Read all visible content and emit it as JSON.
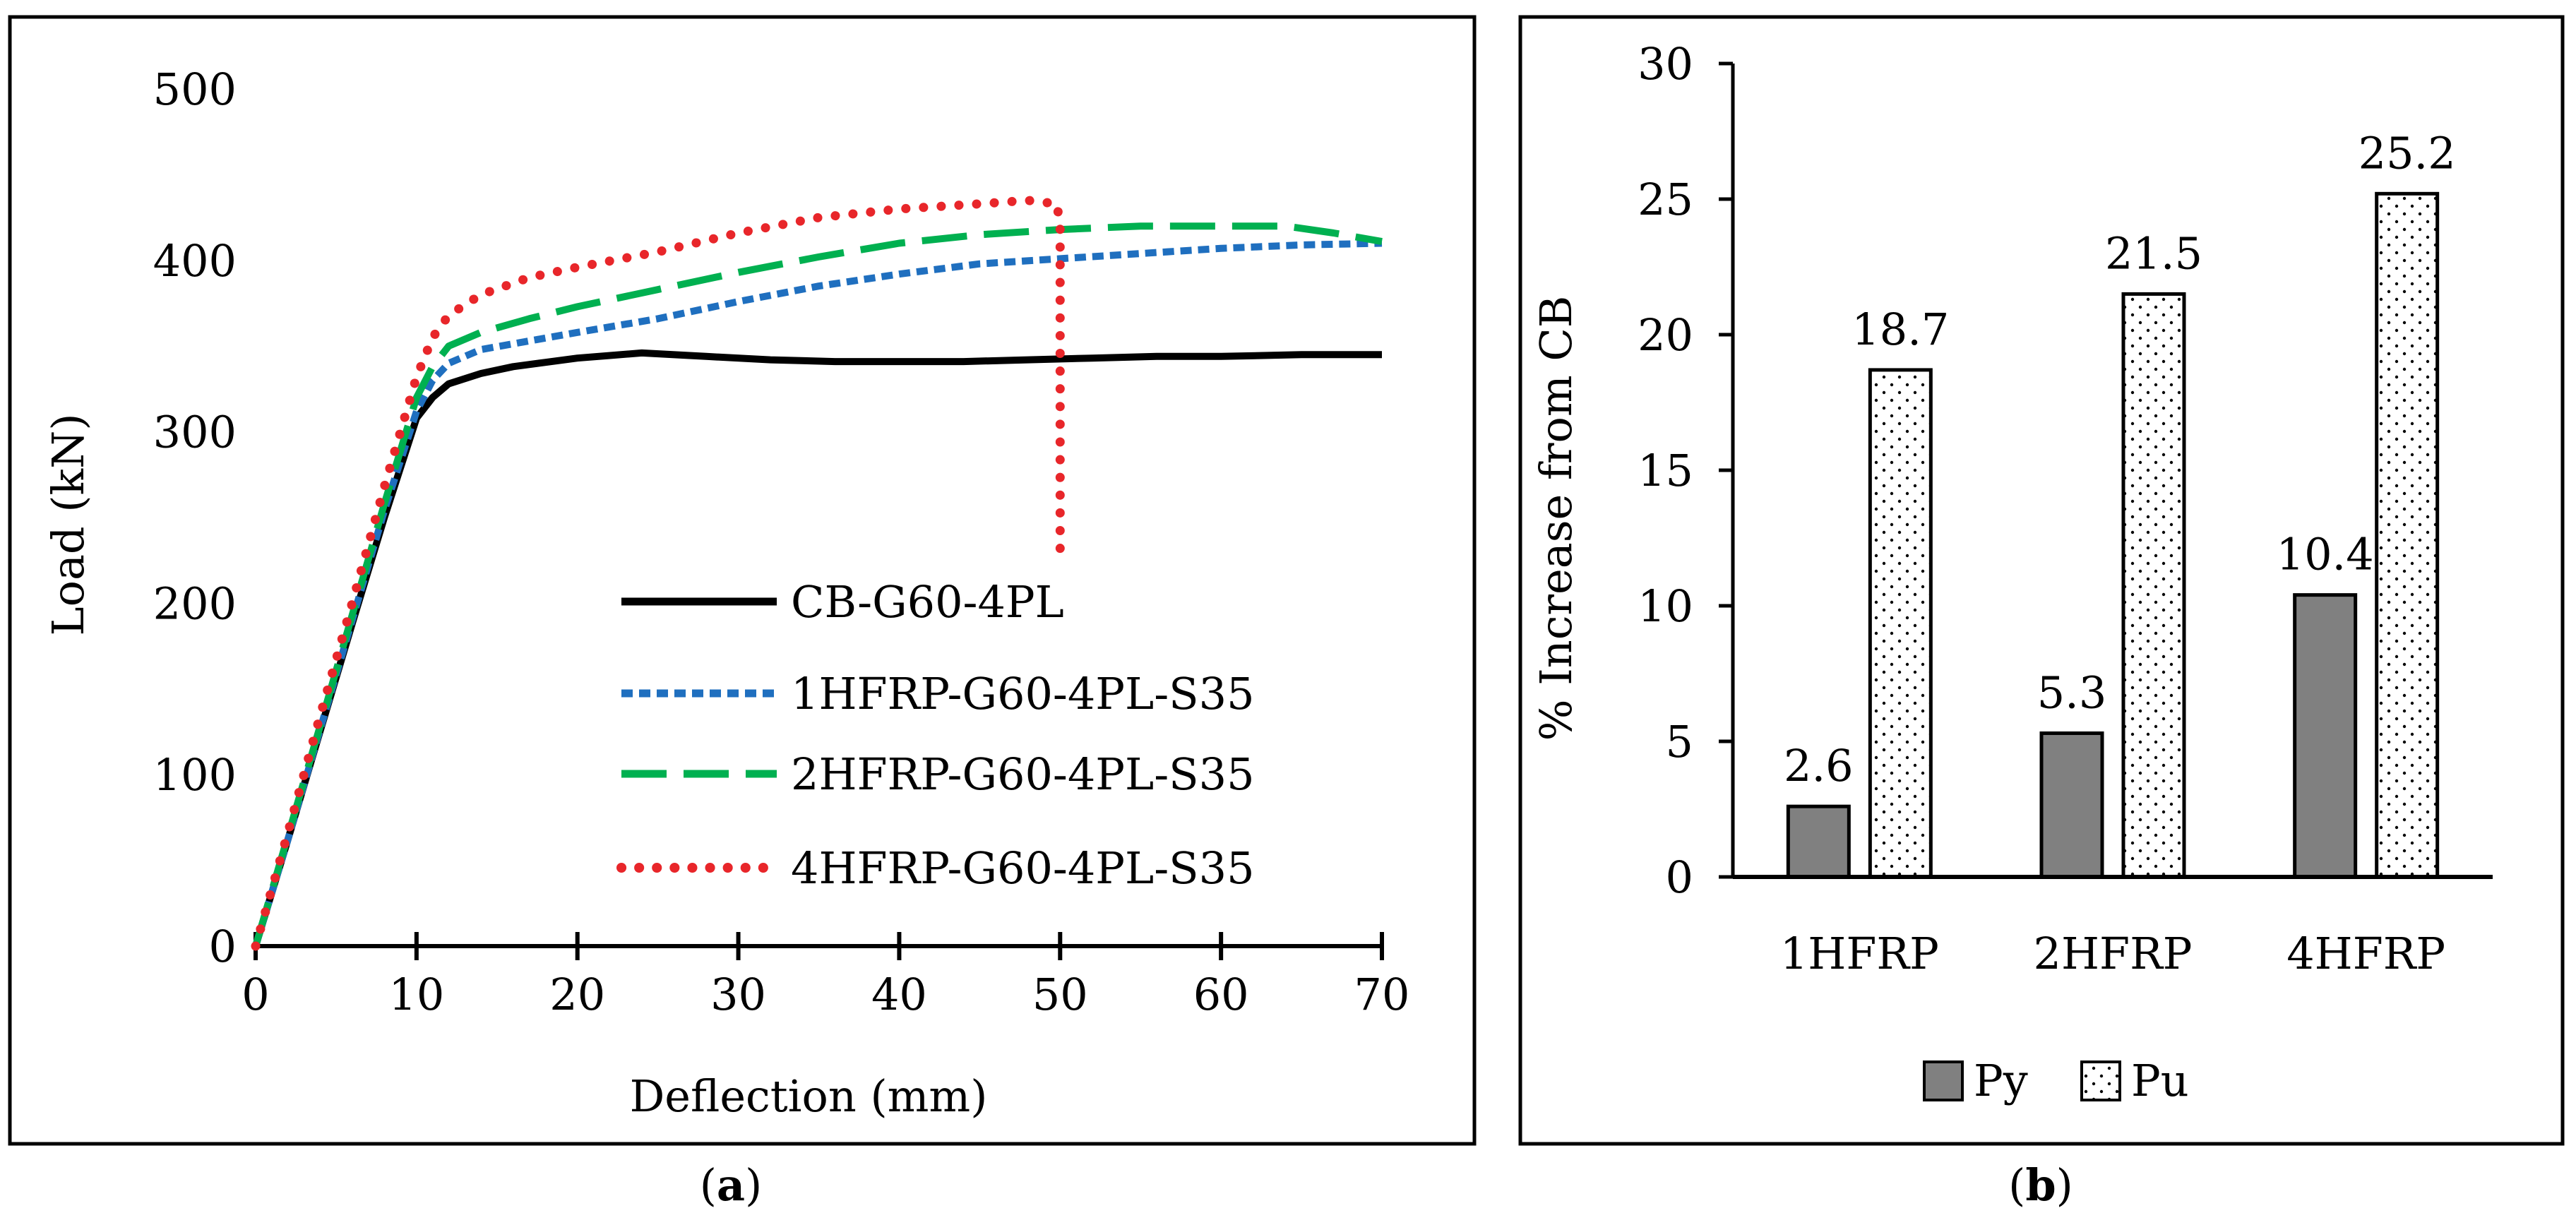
{
  "chart_data": [
    {
      "type": "line",
      "panel_label": "a",
      "xlabel": "Deflection (mm)",
      "ylabel": "Load (kN)",
      "xlim": [
        0,
        70
      ],
      "ylim": [
        0,
        500
      ],
      "xticks": [
        "0",
        "10",
        "20",
        "30",
        "40",
        "50",
        "60",
        "70"
      ],
      "yticks": [
        "0",
        "100",
        "200",
        "300",
        "400",
        "500"
      ],
      "grid": false,
      "legend_position": "center-right",
      "series": [
        {
          "name": "CB-G60-4PL",
          "color": "#000000",
          "style": "solid",
          "points": [
            [
              0,
              0
            ],
            [
              2,
              62
            ],
            [
              4,
              125
            ],
            [
              6,
              188
            ],
            [
              8,
              250
            ],
            [
              10,
              308
            ],
            [
              11,
              320
            ],
            [
              12,
              328
            ],
            [
              14,
              334
            ],
            [
              16,
              338
            ],
            [
              20,
              343
            ],
            [
              24,
              346
            ],
            [
              28,
              344
            ],
            [
              32,
              342
            ],
            [
              36,
              341
            ],
            [
              40,
              341
            ],
            [
              44,
              341
            ],
            [
              48,
              342
            ],
            [
              52,
              343
            ],
            [
              56,
              344
            ],
            [
              60,
              344
            ],
            [
              65,
              345
            ],
            [
              70,
              345
            ]
          ]
        },
        {
          "name": "1HFRP-G60-4PL-S35",
          "color": "#1f6fbf",
          "style": "short-dash",
          "points": [
            [
              0,
              0
            ],
            [
              2,
              62
            ],
            [
              4,
              126
            ],
            [
              6,
              190
            ],
            [
              8,
              254
            ],
            [
              10,
              312
            ],
            [
              11,
              330
            ],
            [
              12,
              340
            ],
            [
              14,
              348
            ],
            [
              17,
              353
            ],
            [
              20,
              358
            ],
            [
              25,
              366
            ],
            [
              30,
              376
            ],
            [
              35,
              385
            ],
            [
              40,
              392
            ],
            [
              45,
              398
            ],
            [
              50,
              401
            ],
            [
              55,
              404
            ],
            [
              60,
              407
            ],
            [
              65,
              409
            ],
            [
              70,
              410
            ]
          ]
        },
        {
          "name": "2HFRP-G60-4PL-S35",
          "color": "#00b050",
          "style": "long-dash",
          "points": [
            [
              0,
              0
            ],
            [
              2,
              64
            ],
            [
              4,
              128
            ],
            [
              6,
              193
            ],
            [
              8,
              258
            ],
            [
              10,
              320
            ],
            [
              11,
              338
            ],
            [
              12,
              350
            ],
            [
              14,
              358
            ],
            [
              17,
              366
            ],
            [
              20,
              373
            ],
            [
              25,
              383
            ],
            [
              30,
              393
            ],
            [
              35,
              402
            ],
            [
              40,
              410
            ],
            [
              45,
              415
            ],
            [
              50,
              418
            ],
            [
              55,
              420
            ],
            [
              60,
              420
            ],
            [
              64,
              420
            ],
            [
              67,
              416
            ],
            [
              70,
              411
            ]
          ]
        },
        {
          "name": "4HFRP-G60-4PL-S35",
          "color": "#e8262a",
          "style": "dotted",
          "points": [
            [
              0,
              0
            ],
            [
              2,
              66
            ],
            [
              4,
              134
            ],
            [
              6,
              200
            ],
            [
              8,
              268
            ],
            [
              10,
              332
            ],
            [
              11,
              355
            ],
            [
              12,
              368
            ],
            [
              14,
              380
            ],
            [
              17,
              390
            ],
            [
              20,
              396
            ],
            [
              25,
              405
            ],
            [
              30,
              416
            ],
            [
              35,
              425
            ],
            [
              40,
              430
            ],
            [
              45,
              433
            ],
            [
              48,
              435
            ],
            [
              49.8,
              433
            ],
            [
              50,
              420
            ],
            [
              50,
              380
            ],
            [
              50,
              330
            ],
            [
              50,
              280
            ],
            [
              50,
              230
            ]
          ]
        }
      ]
    },
    {
      "type": "bar",
      "panel_label": "b",
      "ylabel": "% Increase from CB",
      "categories": [
        "1HFRP",
        "2HFRP",
        "4HFRP"
      ],
      "ylim": [
        0,
        30
      ],
      "yticks": [
        "0",
        "5",
        "10",
        "15",
        "20",
        "25",
        "30"
      ],
      "grid": false,
      "legend_position": "bottom",
      "series": [
        {
          "name": "Py",
          "fill": "#808080",
          "values": [
            2.6,
            5.3,
            10.4
          ],
          "labels": [
            "2.6",
            "5.3",
            "10.4"
          ]
        },
        {
          "name": "Pu",
          "fill": "dotted-white",
          "values": [
            18.7,
            21.5,
            25.2
          ],
          "labels": [
            "18.7",
            "21.5",
            "25.2"
          ]
        }
      ]
    }
  ]
}
